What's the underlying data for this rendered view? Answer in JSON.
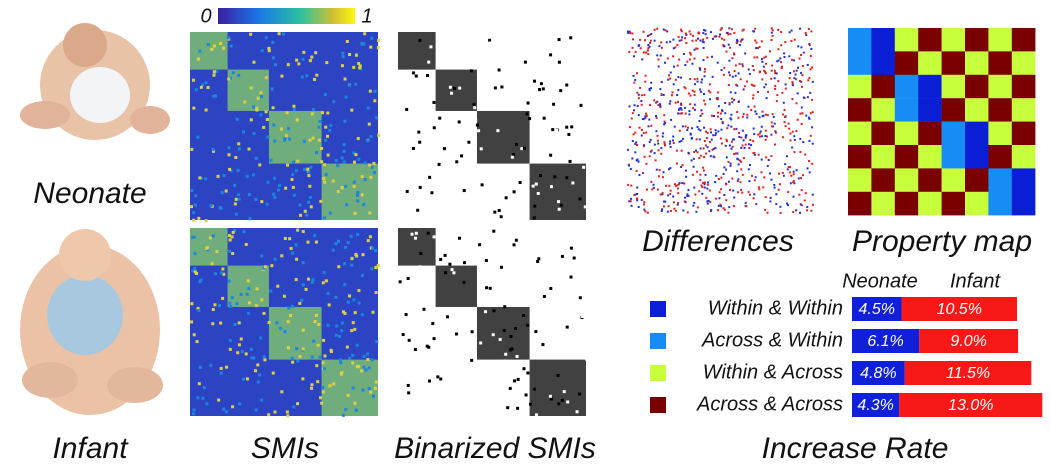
{
  "labels": {
    "neonate": "Neonate",
    "infant": "Infant",
    "smis": "SMIs",
    "binarized": "Binarized SMIs",
    "differences": "Differences",
    "property_map": "Property map"
  },
  "colorbar": {
    "range": [
      0,
      1
    ],
    "ticks": [
      0,
      1
    ]
  },
  "chart_data": {
    "type": "stacked-hbar",
    "title": "Increase Rate",
    "categories": [
      "Within & Within",
      "Across & Within",
      "Within & Across",
      "Across & Across"
    ],
    "category_colors": [
      "#0a1ed6",
      "#168cf5",
      "#c8ff3c",
      "#7a0000"
    ],
    "series": [
      {
        "name": "Neonate",
        "color": "#1020d8",
        "values": [
          4.5,
          6.1,
          4.8,
          4.3
        ],
        "value_labels": [
          "4.5%",
          "6.1%",
          "4.8%",
          "4.3%"
        ]
      },
      {
        "name": "Infant",
        "color": "#f81818",
        "values": [
          10.5,
          9.0,
          11.5,
          13.0
        ],
        "value_labels": [
          "10.5%",
          "9.0%",
          "11.5%",
          "13.0%"
        ]
      }
    ]
  }
}
